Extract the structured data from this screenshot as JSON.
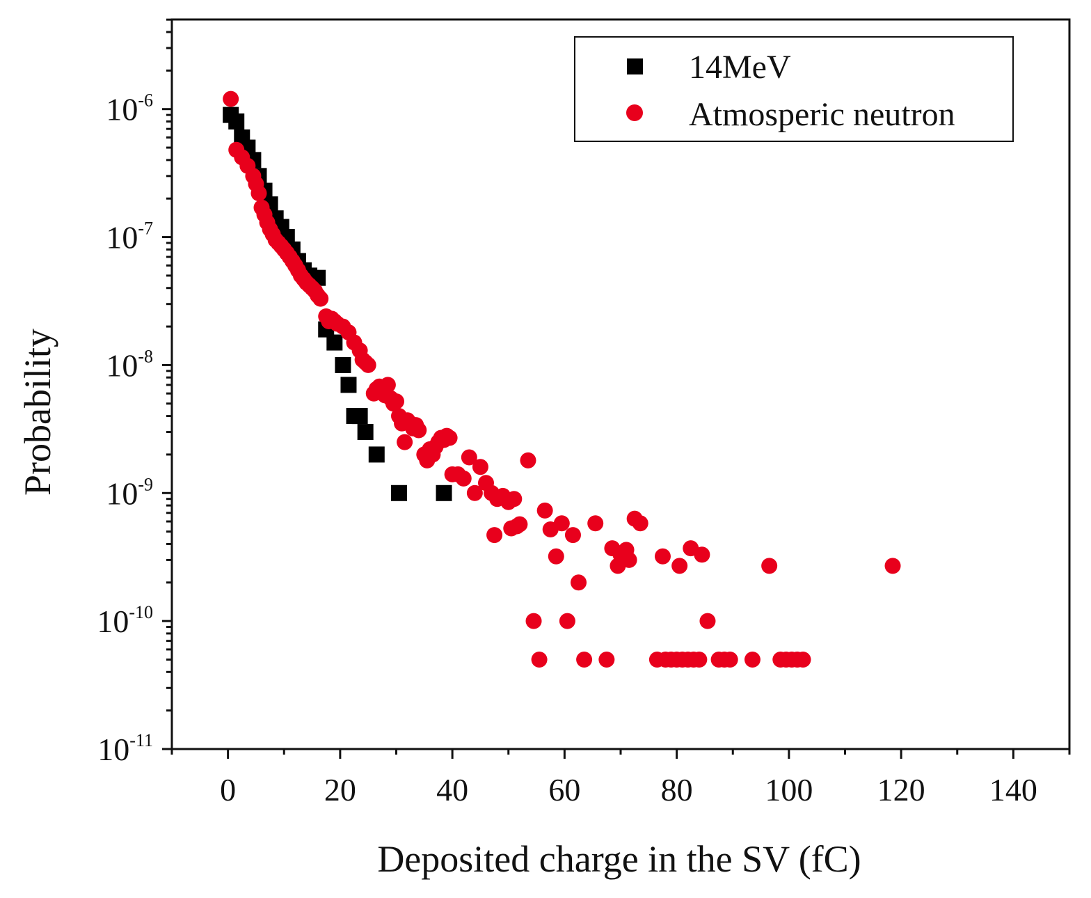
{
  "chart_data": {
    "type": "scatter",
    "xlabel": "Deposited charge in the SV (fC)",
    "ylabel": "Probability",
    "xlim": [
      -10,
      150
    ],
    "ylim_log10": [
      -11,
      -5.3
    ],
    "y_scale": "log",
    "x_ticks": [
      "0",
      "20",
      "40",
      "60",
      "80",
      "100",
      "120",
      "140"
    ],
    "x_tick_values": [
      0,
      20,
      40,
      60,
      80,
      100,
      120,
      140
    ],
    "y_ticks": [
      {
        "base": "10",
        "exp": "-6",
        "value": 1e-06
      },
      {
        "base": "10",
        "exp": "-7",
        "value": 1e-07
      },
      {
        "base": "10",
        "exp": "-8",
        "value": 1e-08
      },
      {
        "base": "10",
        "exp": "-9",
        "value": 1e-09
      },
      {
        "base": "10",
        "exp": "-10",
        "value": 1e-10
      },
      {
        "base": "10",
        "exp": "-11",
        "value": 1e-11
      }
    ],
    "legend_position": "top-right",
    "series": [
      {
        "name": "14MeV",
        "marker": "square",
        "color": "#000000",
        "points": [
          [
            0.5,
            9e-07
          ],
          [
            1.5,
            8e-07
          ],
          [
            2.5,
            6e-07
          ],
          [
            3.5,
            5e-07
          ],
          [
            4.5,
            4e-07
          ],
          [
            5.5,
            3e-07
          ],
          [
            6.5,
            2.3e-07
          ],
          [
            7.5,
            1.8e-07
          ],
          [
            8.5,
            1.4e-07
          ],
          [
            9.5,
            1.2e-07
          ],
          [
            10.5,
            1e-07
          ],
          [
            11.5,
            8e-08
          ],
          [
            12.5,
            6.5e-08
          ],
          [
            13.5,
            5.5e-08
          ],
          [
            14.5,
            5e-08
          ],
          [
            16,
            4.8e-08
          ],
          [
            17.5,
            1.9e-08
          ],
          [
            19,
            1.5e-08
          ],
          [
            20.5,
            1e-08
          ],
          [
            21.5,
            7e-09
          ],
          [
            22.5,
            4e-09
          ],
          [
            23.5,
            4e-09
          ],
          [
            24.5,
            3e-09
          ],
          [
            26.5,
            2e-09
          ],
          [
            30.5,
            1e-09
          ],
          [
            38.5,
            1e-09
          ]
        ]
      },
      {
        "name": "Atmosperic neutron",
        "marker": "circle",
        "color": "#e8001c",
        "points": [
          [
            0.5,
            1.2e-06
          ],
          [
            1.5,
            4.8e-07
          ],
          [
            2.5,
            4.2e-07
          ],
          [
            3.5,
            3.6e-07
          ],
          [
            4.5,
            3e-07
          ],
          [
            5,
            2.6e-07
          ],
          [
            5.5,
            2.2e-07
          ],
          [
            6,
            1.7e-07
          ],
          [
            6.5,
            1.5e-07
          ],
          [
            7,
            1.3e-07
          ],
          [
            7.5,
            1.15e-07
          ],
          [
            8,
            1.05e-07
          ],
          [
            8.5,
            9.5e-08
          ],
          [
            9,
            9e-08
          ],
          [
            9.5,
            8.5e-08
          ],
          [
            10,
            8e-08
          ],
          [
            10.5,
            7.5e-08
          ],
          [
            11,
            7e-08
          ],
          [
            11.5,
            6.5e-08
          ],
          [
            12,
            6e-08
          ],
          [
            12.5,
            5.5e-08
          ],
          [
            13,
            5e-08
          ],
          [
            13.5,
            4.7e-08
          ],
          [
            14,
            4.4e-08
          ],
          [
            14.5,
            4.2e-08
          ],
          [
            15,
            4e-08
          ],
          [
            15.5,
            3.8e-08
          ],
          [
            16,
            3.5e-08
          ],
          [
            16.5,
            3.3e-08
          ],
          [
            17.5,
            2.4e-08
          ],
          [
            18,
            2.2e-08
          ],
          [
            18.5,
            2.3e-08
          ],
          [
            19,
            2.2e-08
          ],
          [
            19.5,
            2.1e-08
          ],
          [
            20.5,
            2e-08
          ],
          [
            21.5,
            1.8e-08
          ],
          [
            22.5,
            1.5e-08
          ],
          [
            23.5,
            1.3e-08
          ],
          [
            24,
            1.1e-08
          ],
          [
            24.5,
            1.05e-08
          ],
          [
            25,
            1e-08
          ],
          [
            26,
            6e-09
          ],
          [
            26.5,
            6.5e-09
          ],
          [
            27,
            6.8e-09
          ],
          [
            27.5,
            6.2e-09
          ],
          [
            28,
            5.8e-09
          ],
          [
            28.5,
            7e-09
          ],
          [
            29,
            5.5e-09
          ],
          [
            29.5,
            5e-09
          ],
          [
            30,
            5.2e-09
          ],
          [
            30.5,
            4e-09
          ],
          [
            31,
            3.5e-09
          ],
          [
            31.5,
            2.5e-09
          ],
          [
            32,
            3.7e-09
          ],
          [
            32.5,
            3.5e-09
          ],
          [
            33,
            3.2e-09
          ],
          [
            33.5,
            3.4e-09
          ],
          [
            34,
            3.1e-09
          ],
          [
            35,
            2e-09
          ],
          [
            35.5,
            1.8e-09
          ],
          [
            36,
            2.2e-09
          ],
          [
            36.5,
            2e-09
          ],
          [
            37,
            2.3e-09
          ],
          [
            37.5,
            2.5e-09
          ],
          [
            38,
            2.7e-09
          ],
          [
            38.5,
            2.6e-09
          ],
          [
            39,
            2.8e-09
          ],
          [
            39.5,
            2.7e-09
          ],
          [
            40,
            1.4e-09
          ],
          [
            41,
            1.4e-09
          ],
          [
            42,
            1.3e-09
          ],
          [
            43,
            1.9e-09
          ],
          [
            44,
            1e-09
          ],
          [
            45,
            1.6e-09
          ],
          [
            46,
            1.2e-09
          ],
          [
            47,
            1e-09
          ],
          [
            47.5,
            4.7e-10
          ],
          [
            48,
            9e-10
          ],
          [
            49,
            9.5e-10
          ],
          [
            50,
            8.5e-10
          ],
          [
            50.5,
            5.3e-10
          ],
          [
            51,
            9e-10
          ],
          [
            51.5,
            5.5e-10
          ],
          [
            52,
            5.7e-10
          ],
          [
            53.5,
            1.8e-09
          ],
          [
            54.5,
            1e-10
          ],
          [
            55.5,
            5e-11
          ],
          [
            56.5,
            7.3e-10
          ],
          [
            57.5,
            5.2e-10
          ],
          [
            58.5,
            3.2e-10
          ],
          [
            59.5,
            5.8e-10
          ],
          [
            60.5,
            1e-10
          ],
          [
            61.5,
            4.7e-10
          ],
          [
            62.5,
            2e-10
          ],
          [
            63.5,
            5e-11
          ],
          [
            65.5,
            5.8e-10
          ],
          [
            67.5,
            5e-11
          ],
          [
            68.5,
            3.7e-10
          ],
          [
            69.5,
            2.7e-10
          ],
          [
            70,
            3.3e-10
          ],
          [
            71,
            3.6e-10
          ],
          [
            71.5,
            3e-10
          ],
          [
            72.5,
            6.3e-10
          ],
          [
            73.5,
            5.8e-10
          ],
          [
            76.5,
            5e-11
          ],
          [
            77.5,
            3.2e-10
          ],
          [
            78,
            5e-11
          ],
          [
            79,
            5e-11
          ],
          [
            80,
            5e-11
          ],
          [
            80.5,
            2.7e-10
          ],
          [
            81,
            5e-11
          ],
          [
            82,
            5e-11
          ],
          [
            82.5,
            3.7e-10
          ],
          [
            83,
            5e-11
          ],
          [
            84,
            5e-11
          ],
          [
            84.5,
            3.3e-10
          ],
          [
            85.5,
            1e-10
          ],
          [
            87.5,
            5e-11
          ],
          [
            88.5,
            5e-11
          ],
          [
            89.5,
            5e-11
          ],
          [
            93.5,
            5e-11
          ],
          [
            96.5,
            2.7e-10
          ],
          [
            98.5,
            5e-11
          ],
          [
            99.5,
            5e-11
          ],
          [
            100.5,
            5e-11
          ],
          [
            101.5,
            5e-11
          ],
          [
            102.5,
            5e-11
          ],
          [
            118.5,
            2.7e-10
          ]
        ]
      }
    ]
  }
}
